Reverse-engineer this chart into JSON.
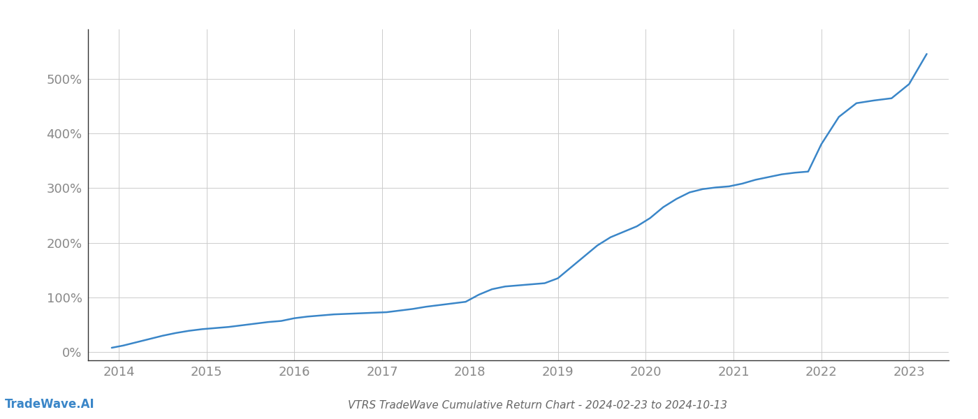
{
  "title": "VTRS TradeWave Cumulative Return Chart - 2024-02-23 to 2024-10-13",
  "watermark": "TradeWave.AI",
  "line_color": "#3a86c8",
  "background_color": "#ffffff",
  "grid_color": "#cccccc",
  "x_years": [
    2014,
    2015,
    2016,
    2017,
    2018,
    2019,
    2020,
    2021,
    2022,
    2023
  ],
  "x_data": [
    2013.92,
    2014.05,
    2014.2,
    2014.35,
    2014.5,
    2014.65,
    2014.8,
    2014.95,
    2015.1,
    2015.25,
    2015.4,
    2015.55,
    2015.7,
    2015.85,
    2016.0,
    2016.15,
    2016.3,
    2016.45,
    2016.6,
    2016.75,
    2016.9,
    2017.05,
    2017.2,
    2017.35,
    2017.5,
    2017.65,
    2017.8,
    2017.95,
    2018.1,
    2018.25,
    2018.4,
    2018.55,
    2018.7,
    2018.85,
    2019.0,
    2019.15,
    2019.3,
    2019.45,
    2019.6,
    2019.75,
    2019.9,
    2020.05,
    2020.2,
    2020.35,
    2020.5,
    2020.65,
    2020.8,
    2020.95,
    2021.1,
    2021.25,
    2021.4,
    2021.55,
    2021.7,
    2021.85,
    2022.0,
    2022.2,
    2022.4,
    2022.6,
    2022.8,
    2023.0,
    2023.2
  ],
  "y_data": [
    8,
    12,
    18,
    24,
    30,
    35,
    39,
    42,
    44,
    46,
    49,
    52,
    55,
    57,
    62,
    65,
    67,
    69,
    70,
    71,
    72,
    73,
    76,
    79,
    83,
    86,
    89,
    92,
    105,
    115,
    120,
    122,
    124,
    126,
    135,
    155,
    175,
    195,
    210,
    220,
    230,
    245,
    265,
    280,
    292,
    298,
    301,
    303,
    308,
    315,
    320,
    325,
    328,
    330,
    380,
    430,
    455,
    460,
    464,
    490,
    545
  ],
  "ylim": [
    -15,
    590
  ],
  "xlim": [
    2013.65,
    2023.45
  ],
  "yticks": [
    0,
    100,
    200,
    300,
    400,
    500
  ],
  "title_fontsize": 11,
  "tick_fontsize": 13,
  "watermark_fontsize": 12,
  "line_width": 1.8,
  "tick_color": "#888888",
  "spine_color": "#333333"
}
